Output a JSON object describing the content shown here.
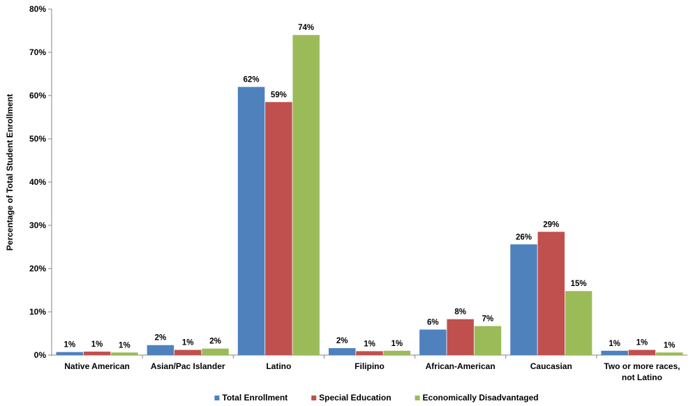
{
  "chart_data": {
    "type": "bar",
    "title": "",
    "xlabel": "",
    "ylabel": "Percentage of Total Student Enrollment",
    "ylim": [
      0,
      80
    ],
    "yticks": [
      0,
      10,
      20,
      30,
      40,
      50,
      60,
      70,
      80
    ],
    "ytick_labels": [
      "0%",
      "10%",
      "20%",
      "30%",
      "40%",
      "50%",
      "60%",
      "70%",
      "80%"
    ],
    "categories": [
      [
        "Native American"
      ],
      [
        "Asian/Pac Islander"
      ],
      [
        "Latino"
      ],
      [
        "Filipino"
      ],
      [
        "African-American"
      ],
      [
        "Caucasian"
      ],
      [
        "Two or more races,",
        "not Latino"
      ]
    ],
    "series": [
      {
        "name": "Total Enrollment",
        "color": "#4F81BD",
        "values": [
          0.7,
          2.3,
          62,
          1.6,
          5.9,
          25.6,
          1.0
        ],
        "labels": [
          "1%",
          "2%",
          "62%",
          "2%",
          "6%",
          "26%",
          "1%"
        ]
      },
      {
        "name": "Special Education",
        "color": "#C0504D",
        "values": [
          0.8,
          1.2,
          58.5,
          0.9,
          8.3,
          28.5,
          1.2
        ],
        "labels": [
          "1%",
          "1%",
          "59%",
          "1%",
          "8%",
          "29%",
          "1%"
        ]
      },
      {
        "name": "Economically Disadvantaged",
        "color": "#9BBB59",
        "values": [
          0.6,
          1.5,
          74,
          1.0,
          6.7,
          14.8,
          0.6
        ],
        "labels": [
          "1%",
          "2%",
          "74%",
          "1%",
          "7%",
          "15%",
          "1%"
        ]
      }
    ],
    "grid": false,
    "legend": "bottom"
  }
}
